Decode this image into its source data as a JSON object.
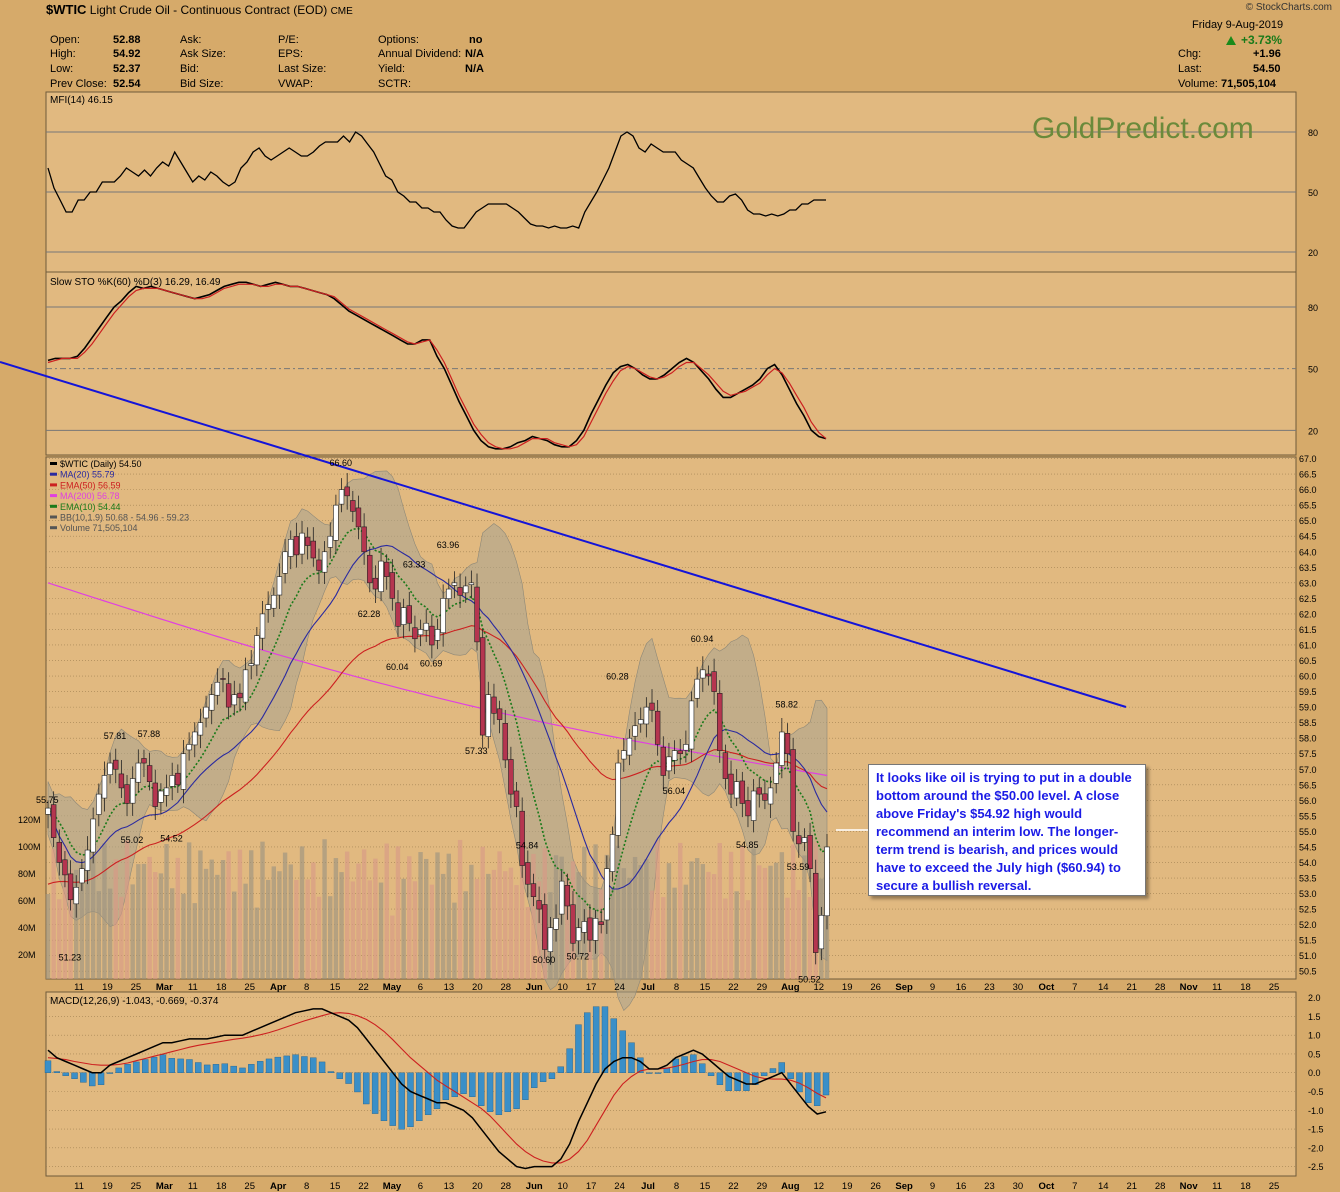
{
  "header": {
    "symbol": "$WTIC",
    "name": "Light Crude Oil - Continuous Contract (EOD)",
    "exchange": "CME",
    "watermark": "© StockCharts.com",
    "brand": "GoldPredict.com",
    "date": "Friday  9-Aug-2019",
    "change_pct": "+3.73%",
    "stats": [
      {
        "label": "Open:",
        "value": "52.88"
      },
      {
        "label": "High:",
        "value": "54.92"
      },
      {
        "label": "Low:",
        "value": "52.37"
      },
      {
        "label": "Prev Close:",
        "value": "52.54"
      }
    ],
    "ask_labels": [
      "Ask:",
      "Ask Size:",
      "Bid:",
      "Bid Size:"
    ],
    "pe_labels": [
      "P/E:",
      "EPS:",
      "Last Size:",
      "VWAP:"
    ],
    "options": [
      {
        "label": "Options:",
        "value": "no"
      },
      {
        "label": "Annual Dividend:",
        "value": "N/A"
      },
      {
        "label": "Yield:",
        "value": "N/A"
      },
      {
        "label": "SCTR:",
        "value": ""
      }
    ],
    "right_stats": [
      {
        "label": "Chg:",
        "value": "+1.96"
      },
      {
        "label": "Last:",
        "value": "54.50"
      },
      {
        "label": "Volume:",
        "value": "71,505,104"
      }
    ]
  },
  "annotation": "It looks like oil is trying to put in a double bottom around the $50.00 level. A close above Friday's $54.92 high would recommend an interim low. The longer-term trend is bearish, and prices would have to exceed the July high ($60.94) to secure a bullish reversal.",
  "chart_data": [
    {
      "type": "line",
      "panel": "MFI",
      "legend": "MFI(14) 46.15",
      "ylim": [
        10,
        100
      ],
      "yticks": [
        20,
        50,
        80
      ],
      "values": [
        62,
        52,
        46,
        40,
        40,
        46,
        46,
        50,
        50,
        55,
        55,
        55,
        58,
        62,
        60,
        58,
        61,
        58,
        62,
        65,
        63,
        70,
        65,
        60,
        55,
        58,
        56,
        60,
        58,
        55,
        53,
        55,
        62,
        65,
        70,
        72,
        68,
        66,
        68,
        70,
        72,
        70,
        68,
        68,
        70,
        73,
        75,
        75,
        75,
        78,
        75,
        80,
        78,
        74,
        70,
        64,
        58,
        56,
        50,
        48,
        45,
        45,
        42,
        42,
        40,
        40,
        36,
        33,
        32,
        32,
        36,
        40,
        42,
        44,
        44,
        44,
        44,
        42,
        40,
        37,
        34,
        33,
        33,
        32,
        33,
        32,
        32,
        33,
        32,
        40,
        45,
        50,
        56,
        62,
        70,
        78,
        80,
        78,
        72,
        70,
        74,
        72,
        70,
        70,
        70,
        66,
        64,
        62,
        57,
        52,
        48,
        45,
        45,
        48,
        49,
        46,
        41,
        39,
        39,
        38,
        39,
        38,
        39,
        41,
        41,
        44,
        44,
        46,
        46,
        46
      ]
    },
    {
      "type": "line",
      "panel": "STO",
      "legend": "Slow STO %K(60) %D(3) 16.29, 16.49",
      "ylim": [
        8,
        97
      ],
      "yticks": [
        20,
        50,
        80
      ],
      "series": [
        {
          "name": "%K",
          "values": [
            54,
            55,
            55,
            55,
            56,
            60,
            65,
            70,
            75,
            80,
            83,
            87,
            90,
            89,
            90,
            89,
            88,
            87,
            86,
            85,
            84,
            85,
            86,
            88,
            90,
            91,
            92,
            92,
            91,
            90,
            91,
            92,
            91,
            90,
            90,
            89,
            88,
            87,
            86,
            84,
            81,
            78,
            76,
            74,
            72,
            70,
            68,
            66,
            64,
            62,
            62,
            64,
            64,
            56,
            50,
            42,
            34,
            27,
            20,
            15,
            12,
            11,
            11,
            12,
            14,
            15,
            17,
            16,
            15,
            13,
            12,
            12,
            15,
            20,
            28,
            35,
            42,
            48,
            51,
            52,
            50,
            47,
            45,
            45,
            47,
            50,
            53,
            55,
            53,
            49,
            45,
            40,
            36,
            36,
            38,
            40,
            42,
            45,
            50,
            52,
            47,
            40,
            33,
            27,
            20,
            17,
            16
          ]
        },
        {
          "name": "%D",
          "values": [
            53,
            54,
            55,
            55,
            55,
            58,
            62,
            67,
            72,
            77,
            81,
            85,
            88,
            89,
            89,
            89,
            88,
            87,
            86,
            85,
            84,
            84,
            85,
            87,
            89,
            90,
            91,
            91,
            91,
            90,
            90,
            91,
            91,
            90,
            90,
            89,
            88,
            87,
            86,
            85,
            82,
            79,
            77,
            75,
            73,
            71,
            69,
            67,
            65,
            63,
            62,
            63,
            64,
            59,
            53,
            45,
            37,
            30,
            23,
            18,
            14,
            12,
            11,
            11,
            12,
            14,
            16,
            16,
            16,
            14,
            13,
            12,
            13,
            17,
            24,
            31,
            38,
            44,
            49,
            51,
            50,
            48,
            46,
            45,
            46,
            48,
            51,
            53,
            53,
            50,
            47,
            43,
            39,
            37,
            38,
            39,
            41,
            43,
            47,
            50,
            48,
            43,
            37,
            31,
            24,
            19,
            16
          ]
        }
      ]
    },
    {
      "type": "line",
      "panel": "Price",
      "legend": [
        "$WTIC (Daily) 54.50",
        "MA(20) 55.79",
        "EMA(50) 56.59",
        "MA(200) 56.78",
        "EMA(10) 54.44",
        "BB(10,1.9) 50.68 - 54.96 - 59.23",
        "Volume 71,505,104"
      ],
      "ylim": [
        50.25,
        67.05
      ],
      "y_ticks": [
        "67.0",
        "66.5",
        "66.0",
        "65.5",
        "65.0",
        "64.5",
        "64.0",
        "63.5",
        "63.0",
        "62.5",
        "62.0",
        "61.5",
        "61.0",
        "60.5",
        "60.0",
        "59.5",
        "59.0",
        "58.5",
        "58.0",
        "57.5",
        "57.0",
        "56.5",
        "56.0",
        "55.5",
        "55.0",
        "54.5",
        "54.0",
        "53.5",
        "53.0",
        "52.5",
        "52.0",
        "51.5",
        "51.0",
        "50.5"
      ],
      "volume_ticks": [
        "120M",
        "100M",
        "80M",
        "60M",
        "40M",
        "20M"
      ],
      "close": [
        55.75,
        54.8,
        54.0,
        53.6,
        52.8,
        53.2,
        53.8,
        54.4,
        55.4,
        56.2,
        56.8,
        57.2,
        57.0,
        56.4,
        55.9,
        56.7,
        57.2,
        57.2,
        56.6,
        55.8,
        56.3,
        56.4,
        56.8,
        56.5,
        57.5,
        57.8,
        58.2,
        58.5,
        59.0,
        59.4,
        59.8,
        59.9,
        59.0,
        59.4,
        59.3,
        60.2,
        60.4,
        61.3,
        62.0,
        62.3,
        62.6,
        63.2,
        64.0,
        64.4,
        63.9,
        64.6,
        64.2,
        63.8,
        63.4,
        64.0,
        64.5,
        65.5,
        66.0,
        65.8,
        65.3,
        64.8,
        64.0,
        63.0,
        62.8,
        63.7,
        63.2,
        62.5,
        61.6,
        62.2,
        61.7,
        61.2,
        61.5,
        61.7,
        61.0,
        61.5,
        62.5,
        62.8,
        63.0,
        62.6,
        62.9,
        63.0,
        61.1,
        58.1,
        59.4,
        58.8,
        58.6,
        57.3,
        56.2,
        55.8,
        53.9,
        53.3,
        52.9,
        52.5,
        51.2,
        51.9,
        52.2,
        53.4,
        52.6,
        51.4,
        51.9,
        52.1,
        51.5,
        52.2,
        52.0,
        53.8,
        54.9,
        57.2,
        57.6,
        58.0,
        58.4,
        58.6,
        59.0,
        58.9,
        57.8,
        56.8,
        57.4,
        57.6,
        57.5,
        57.8,
        59.2,
        59.9,
        60.2,
        60.0,
        59.5,
        57.6,
        56.7,
        56.2,
        56.6,
        55.9,
        55.5,
        56.3,
        56.2,
        56.0,
        56.4,
        57.2,
        58.2,
        57.5,
        55.0,
        54.6,
        54.8,
        53.8,
        51.1,
        52.3,
        54.5
      ],
      "price_labels": [
        {
          "text": "55.75",
          "price": 55.75
        },
        {
          "text": "51.23",
          "price": 51.23
        },
        {
          "text": "57.81",
          "price": 57.81
        },
        {
          "text": "57.88",
          "price": 57.88
        },
        {
          "text": "55.02",
          "price": 55.02
        },
        {
          "text": "54.52",
          "price": 54.52
        },
        {
          "text": "66.60",
          "price": 66.6
        },
        {
          "text": "62.28",
          "price": 62.28
        },
        {
          "text": "63.33",
          "price": 63.33
        },
        {
          "text": "63.96",
          "price": 63.96
        },
        {
          "text": "60.69",
          "price": 60.69
        },
        {
          "text": "60.04",
          "price": 60.04
        },
        {
          "text": "57.33",
          "price": 57.33
        },
        {
          "text": "54.84",
          "price": 54.84
        },
        {
          "text": "50.60",
          "price": 50.6
        },
        {
          "text": "50.72",
          "price": 50.72
        },
        {
          "text": "60.28",
          "price": 60.28
        },
        {
          "text": "56.04",
          "price": 56.04
        },
        {
          "text": "60.94",
          "price": 60.94
        },
        {
          "text": "54.85",
          "price": 54.85
        },
        {
          "text": "58.82",
          "price": 58.82
        },
        {
          "text": "53.59",
          "price": 53.59
        },
        {
          "text": "50.52",
          "price": 50.52
        }
      ]
    },
    {
      "type": "line",
      "panel": "MACD",
      "legend": "MACD(12,26,9) -1.043, -0.669, -0.374",
      "ylim": [
        -2.75,
        2.15
      ],
      "yticks": [
        "2.0",
        "1.5",
        "1.0",
        "0.5",
        "0.0",
        "-0.5",
        "-1.0",
        "-1.5",
        "-2.0",
        "-2.5"
      ],
      "series": [
        {
          "name": "MACD",
          "values": [
            0.6,
            0.4,
            0.3,
            0.2,
            0.1,
            0.0,
            0.0,
            0.2,
            0.3,
            0.4,
            0.5,
            0.6,
            0.7,
            0.8,
            0.8,
            0.85,
            0.9,
            0.9,
            0.9,
            0.95,
            1.0,
            1.0,
            1.0,
            1.1,
            1.2,
            1.3,
            1.4,
            1.5,
            1.6,
            1.65,
            1.7,
            1.7,
            1.6,
            1.5,
            1.4,
            1.2,
            0.9,
            0.6,
            0.3,
            0.0,
            -0.3,
            -0.5,
            -0.6,
            -0.7,
            -0.8,
            -0.8,
            -0.9,
            -1.0,
            -1.2,
            -1.5,
            -1.8,
            -2.1,
            -2.3,
            -2.5,
            -2.55,
            -2.5,
            -2.5,
            -2.5,
            -2.3,
            -1.9,
            -1.3,
            -0.8,
            -0.3,
            0.1,
            0.3,
            0.4,
            0.4,
            0.3,
            0.1,
            0.1,
            0.2,
            0.4,
            0.5,
            0.6,
            0.5,
            0.3,
            0.1,
            -0.1,
            -0.2,
            -0.3,
            -0.3,
            -0.2,
            -0.1,
            0.0,
            -0.3,
            -0.6,
            -0.9,
            -1.1,
            -1.04
          ]
        },
        {
          "name": "Signal",
          "values": [
            0.4,
            0.38,
            0.35,
            0.3,
            0.26,
            0.22,
            0.2,
            0.2,
            0.22,
            0.26,
            0.32,
            0.38,
            0.44,
            0.5,
            0.56,
            0.62,
            0.68,
            0.73,
            0.77,
            0.81,
            0.85,
            0.89,
            0.92,
            0.96,
            1.01,
            1.07,
            1.14,
            1.22,
            1.3,
            1.38,
            1.45,
            1.52,
            1.58,
            1.6,
            1.58,
            1.52,
            1.42,
            1.28,
            1.1,
            0.88,
            0.64,
            0.4,
            0.2,
            0.0,
            -0.2,
            -0.35,
            -0.5,
            -0.65,
            -0.8,
            -0.95,
            -1.15,
            -1.4,
            -1.65,
            -1.9,
            -2.1,
            -2.25,
            -2.35,
            -2.4,
            -2.4,
            -2.3,
            -2.1,
            -1.8,
            -1.4,
            -1.0,
            -0.6,
            -0.3,
            -0.1,
            0.05,
            0.1,
            0.1,
            0.12,
            0.17,
            0.23,
            0.3,
            0.35,
            0.35,
            0.3,
            0.2,
            0.1,
            0.0,
            -0.1,
            -0.15,
            -0.17,
            -0.17,
            -0.2,
            -0.28,
            -0.4,
            -0.55,
            -0.669
          ]
        }
      ]
    }
  ],
  "x_axis": {
    "labels": [
      {
        "text": "11",
        "bold": false
      },
      {
        "text": "19",
        "bold": false
      },
      {
        "text": "25",
        "bold": false
      },
      {
        "text": "Mar",
        "bold": true
      },
      {
        "text": "11",
        "bold": false
      },
      {
        "text": "18",
        "bold": false
      },
      {
        "text": "25",
        "bold": false
      },
      {
        "text": "Apr",
        "bold": true
      },
      {
        "text": "8",
        "bold": false
      },
      {
        "text": "15",
        "bold": false
      },
      {
        "text": "22",
        "bold": false
      },
      {
        "text": "May",
        "bold": true
      },
      {
        "text": "6",
        "bold": false
      },
      {
        "text": "13",
        "bold": false
      },
      {
        "text": "20",
        "bold": false
      },
      {
        "text": "28",
        "bold": false
      },
      {
        "text": "Jun",
        "bold": true
      },
      {
        "text": "10",
        "bold": false
      },
      {
        "text": "17",
        "bold": false
      },
      {
        "text": "24",
        "bold": false
      },
      {
        "text": "Jul",
        "bold": true
      },
      {
        "text": "8",
        "bold": false
      },
      {
        "text": "15",
        "bold": false
      },
      {
        "text": "22",
        "bold": false
      },
      {
        "text": "29",
        "bold": false
      },
      {
        "text": "Aug",
        "bold": true
      },
      {
        "text": "12",
        "bold": false
      },
      {
        "text": "19",
        "bold": false
      },
      {
        "text": "26",
        "bold": false
      },
      {
        "text": "Sep",
        "bold": true
      },
      {
        "text": "9",
        "bold": false
      },
      {
        "text": "16",
        "bold": false
      },
      {
        "text": "23",
        "bold": false
      },
      {
        "text": "30",
        "bold": false
      },
      {
        "text": "Oct",
        "bold": true
      },
      {
        "text": "7",
        "bold": false
      },
      {
        "text": "14",
        "bold": false
      },
      {
        "text": "21",
        "bold": false
      },
      {
        "text": "28",
        "bold": false
      },
      {
        "text": "Nov",
        "bold": true
      },
      {
        "text": "11",
        "bold": false
      },
      {
        "text": "18",
        "bold": false
      },
      {
        "text": "25",
        "bold": false
      }
    ]
  },
  "colors": {
    "background": "#d6aa6a",
    "panel": "#e1b980",
    "grid": "#a08050",
    "up": "#ffffff",
    "down": "#b5354f",
    "ma20": "#2a2aa0",
    "ema50": "#cc2020",
    "ma200": "#e040e0",
    "ema10": "#1a7a1a",
    "trendline": "#1414d8",
    "macd_hist": "#3a8fc8"
  }
}
